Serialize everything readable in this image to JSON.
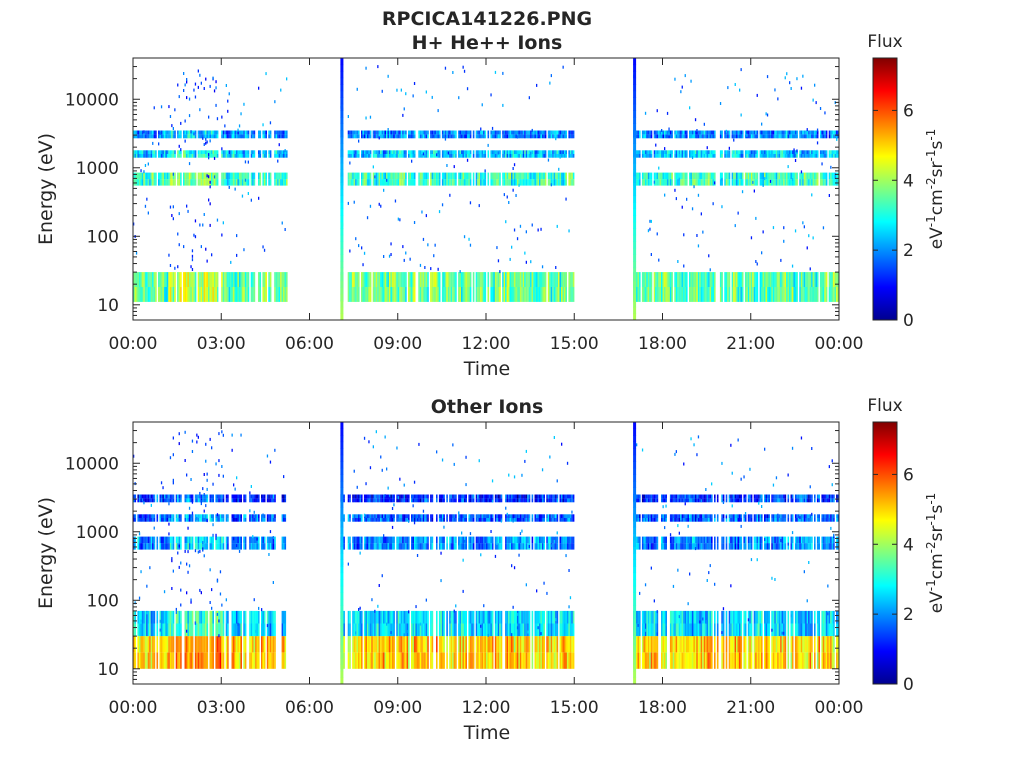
{
  "figure": {
    "title_line1": "RPCICA141226.PNG"
  },
  "chart_data": [
    {
      "type": "heatmap",
      "title": "H+ He++ Ions",
      "xlabel": "Time",
      "ylabel": "Energy (eV)",
      "yscale": "log",
      "ylim": [
        6,
        40000
      ],
      "xlim": [
        "00:00",
        "24:00"
      ],
      "x_tick_labels": [
        "00:00",
        "03:00",
        "06:00",
        "09:00",
        "12:00",
        "15:00",
        "18:00",
        "21:00",
        "00:00"
      ],
      "y_tick_values": [
        10,
        100,
        1000,
        10000
      ],
      "y_tick_labels": [
        "10",
        "100",
        "1000",
        "10000"
      ],
      "colorbar": {
        "label_top": "Flux",
        "unit": "eV-1cm-2sr-1s-1",
        "range": [
          0,
          7.5
        ],
        "ticks": [
          "0",
          "2",
          "4",
          "6"
        ],
        "colormap": "jet"
      },
      "data_gaps_hours": [
        [
          5.2,
          7.0
        ],
        [
          7.15,
          7.25
        ],
        [
          15.0,
          17.0
        ]
      ],
      "spikes_hours": [
        7.1,
        17.05
      ],
      "bands": [
        {
          "energy_eV": [
            11,
            30
          ],
          "flux": 3.5
        },
        {
          "energy_eV": [
            550,
            850
          ],
          "flux": 3.2
        },
        {
          "energy_eV": [
            1400,
            1800
          ],
          "flux": 2.4
        },
        {
          "energy_eV": [
            2700,
            3500
          ],
          "flux": 1.9
        }
      ]
    },
    {
      "type": "heatmap",
      "title": "Other Ions",
      "xlabel": "Time",
      "ylabel": "Energy (eV)",
      "yscale": "log",
      "ylim": [
        6,
        40000
      ],
      "xlim": [
        "00:00",
        "24:00"
      ],
      "x_tick_labels": [
        "00:00",
        "03:00",
        "06:00",
        "09:00",
        "12:00",
        "15:00",
        "18:00",
        "21:00",
        "00:00"
      ],
      "y_tick_values": [
        10,
        100,
        1000,
        10000
      ],
      "y_tick_labels": [
        "10",
        "100",
        "1000",
        "10000"
      ],
      "colorbar": {
        "label_top": "Flux",
        "unit": "eV-1cm-2sr-1s-1",
        "range": [
          0,
          7.5
        ],
        "ticks": [
          "0",
          "2",
          "4",
          "6"
        ],
        "colormap": "jet"
      },
      "data_gaps_hours": [
        [
          5.2,
          7.0
        ],
        [
          7.15,
          7.25
        ],
        [
          15.0,
          17.0
        ]
      ],
      "spikes_hours": [
        7.1,
        17.05
      ],
      "bands": [
        {
          "energy_eV": [
            10,
            30
          ],
          "flux": 5.0
        },
        {
          "energy_eV": [
            30,
            70
          ],
          "flux": 2.6
        },
        {
          "energy_eV": [
            550,
            850
          ],
          "flux": 1.9
        },
        {
          "energy_eV": [
            1400,
            1800
          ],
          "flux": 1.6
        },
        {
          "energy_eV": [
            2700,
            3500
          ],
          "flux": 1.3
        }
      ]
    }
  ]
}
